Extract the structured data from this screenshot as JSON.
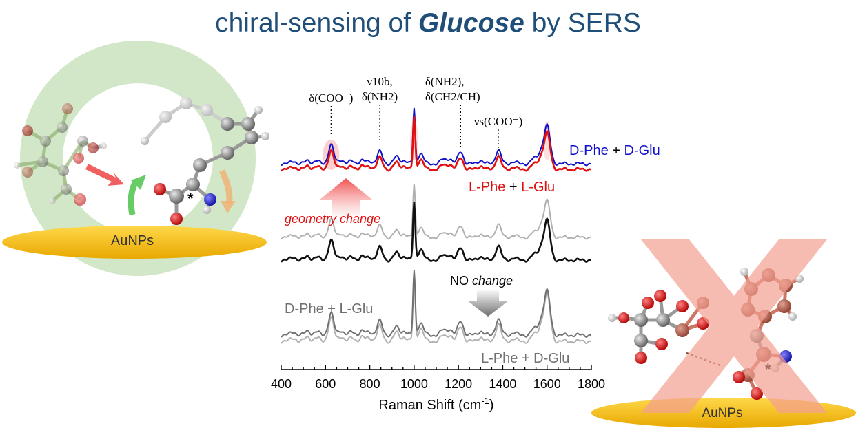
{
  "title": {
    "prefix": "chiral-sensing of ",
    "emphasis": "Glucose",
    "suffix": " by SERS"
  },
  "surface_label": "AuNPs",
  "chart_data": {
    "type": "line",
    "xlabel": "Raman Shift (cm",
    "xlabel_sup": "-1",
    "xlabel_close": ")",
    "xlim": [
      400,
      1800
    ],
    "xticks": [
      400,
      600,
      800,
      1000,
      1200,
      1400,
      1600,
      1800
    ],
    "peak_labels": [
      {
        "x": 625,
        "lines": [
          "δ(COO⁻)"
        ]
      },
      {
        "x": 845,
        "lines": [
          "ν10b,",
          "δ(NH2)"
        ]
      },
      {
        "x": 1210,
        "lines": [
          "δ(NH2),",
          "δ(CH2/CH)"
        ]
      },
      {
        "x": 1380,
        "lines": [
          "νs(COO⁻)"
        ]
      }
    ],
    "series": [
      {
        "name": "D-Phe + D-Glu",
        "color": "#1010c8",
        "group": "matched"
      },
      {
        "name": "L-Phe + L-Glu",
        "color": "#e01010",
        "group": "matched"
      },
      {
        "color": "#b0b0b0",
        "group": "middle"
      },
      {
        "color": "#101010",
        "group": "middle"
      },
      {
        "name": "D-Phe + L-Glu",
        "color": "#707070",
        "group": "mismatched"
      },
      {
        "name": "L-Phe + D-Glu",
        "color": "#b0b0b0",
        "group": "mismatched"
      }
    ],
    "legend_parts": {
      "dd": [
        [
          "D-Phe",
          "#1010c8"
        ],
        [
          " + ",
          "#000000"
        ],
        [
          "D-Glu",
          "#1010c8"
        ]
      ],
      "ll": [
        [
          "L-Phe",
          "#e01010"
        ],
        [
          " + ",
          "#000000"
        ],
        [
          "L-Glu",
          "#e01010"
        ]
      ]
    },
    "annotations": {
      "geometry_change": "geometry change",
      "no_change_no": "NO ",
      "no_change_word": "change"
    },
    "peaks": [
      {
        "x": 625,
        "h": 0.55
      },
      {
        "x": 845,
        "h": 0.35
      },
      {
        "x": 1000,
        "h": 1.6
      },
      {
        "x": 1030,
        "h": 0.3
      },
      {
        "x": 1210,
        "h": 0.35
      },
      {
        "x": 1380,
        "h": 0.4
      },
      {
        "x": 1600,
        "h": 1.1
      }
    ]
  },
  "colors": {
    "title": "#1f4e79",
    "gold": "#f5c518",
    "green_circle": "#cfe6c4",
    "cross": "#f4a091"
  }
}
